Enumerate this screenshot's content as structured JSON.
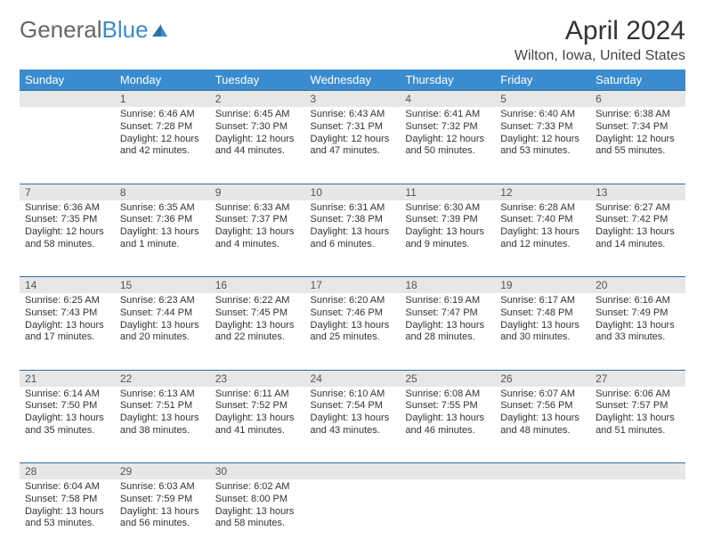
{
  "brand": {
    "part1": "General",
    "part2": "Blue"
  },
  "title": "April 2024",
  "location": "Wilton, Iowa, United States",
  "colors": {
    "header_bg": "#3b8ccf",
    "header_text": "#ffffff",
    "daynum_bg": "#e7e7e7",
    "rule": "#2f6fa3",
    "body_text": "#333333"
  },
  "dow": [
    "Sunday",
    "Monday",
    "Tuesday",
    "Wednesday",
    "Thursday",
    "Friday",
    "Saturday"
  ],
  "weeks": [
    [
      null,
      {
        "n": "1",
        "sr": "Sunrise: 6:46 AM",
        "ss": "Sunset: 7:28 PM",
        "dl": "Daylight: 12 hours and 42 minutes."
      },
      {
        "n": "2",
        "sr": "Sunrise: 6:45 AM",
        "ss": "Sunset: 7:30 PM",
        "dl": "Daylight: 12 hours and 44 minutes."
      },
      {
        "n": "3",
        "sr": "Sunrise: 6:43 AM",
        "ss": "Sunset: 7:31 PM",
        "dl": "Daylight: 12 hours and 47 minutes."
      },
      {
        "n": "4",
        "sr": "Sunrise: 6:41 AM",
        "ss": "Sunset: 7:32 PM",
        "dl": "Daylight: 12 hours and 50 minutes."
      },
      {
        "n": "5",
        "sr": "Sunrise: 6:40 AM",
        "ss": "Sunset: 7:33 PM",
        "dl": "Daylight: 12 hours and 53 minutes."
      },
      {
        "n": "6",
        "sr": "Sunrise: 6:38 AM",
        "ss": "Sunset: 7:34 PM",
        "dl": "Daylight: 12 hours and 55 minutes."
      }
    ],
    [
      {
        "n": "7",
        "sr": "Sunrise: 6:36 AM",
        "ss": "Sunset: 7:35 PM",
        "dl": "Daylight: 12 hours and 58 minutes."
      },
      {
        "n": "8",
        "sr": "Sunrise: 6:35 AM",
        "ss": "Sunset: 7:36 PM",
        "dl": "Daylight: 13 hours and 1 minute."
      },
      {
        "n": "9",
        "sr": "Sunrise: 6:33 AM",
        "ss": "Sunset: 7:37 PM",
        "dl": "Daylight: 13 hours and 4 minutes."
      },
      {
        "n": "10",
        "sr": "Sunrise: 6:31 AM",
        "ss": "Sunset: 7:38 PM",
        "dl": "Daylight: 13 hours and 6 minutes."
      },
      {
        "n": "11",
        "sr": "Sunrise: 6:30 AM",
        "ss": "Sunset: 7:39 PM",
        "dl": "Daylight: 13 hours and 9 minutes."
      },
      {
        "n": "12",
        "sr": "Sunrise: 6:28 AM",
        "ss": "Sunset: 7:40 PM",
        "dl": "Daylight: 13 hours and 12 minutes."
      },
      {
        "n": "13",
        "sr": "Sunrise: 6:27 AM",
        "ss": "Sunset: 7:42 PM",
        "dl": "Daylight: 13 hours and 14 minutes."
      }
    ],
    [
      {
        "n": "14",
        "sr": "Sunrise: 6:25 AM",
        "ss": "Sunset: 7:43 PM",
        "dl": "Daylight: 13 hours and 17 minutes."
      },
      {
        "n": "15",
        "sr": "Sunrise: 6:23 AM",
        "ss": "Sunset: 7:44 PM",
        "dl": "Daylight: 13 hours and 20 minutes."
      },
      {
        "n": "16",
        "sr": "Sunrise: 6:22 AM",
        "ss": "Sunset: 7:45 PM",
        "dl": "Daylight: 13 hours and 22 minutes."
      },
      {
        "n": "17",
        "sr": "Sunrise: 6:20 AM",
        "ss": "Sunset: 7:46 PM",
        "dl": "Daylight: 13 hours and 25 minutes."
      },
      {
        "n": "18",
        "sr": "Sunrise: 6:19 AM",
        "ss": "Sunset: 7:47 PM",
        "dl": "Daylight: 13 hours and 28 minutes."
      },
      {
        "n": "19",
        "sr": "Sunrise: 6:17 AM",
        "ss": "Sunset: 7:48 PM",
        "dl": "Daylight: 13 hours and 30 minutes."
      },
      {
        "n": "20",
        "sr": "Sunrise: 6:16 AM",
        "ss": "Sunset: 7:49 PM",
        "dl": "Daylight: 13 hours and 33 minutes."
      }
    ],
    [
      {
        "n": "21",
        "sr": "Sunrise: 6:14 AM",
        "ss": "Sunset: 7:50 PM",
        "dl": "Daylight: 13 hours and 35 minutes."
      },
      {
        "n": "22",
        "sr": "Sunrise: 6:13 AM",
        "ss": "Sunset: 7:51 PM",
        "dl": "Daylight: 13 hours and 38 minutes."
      },
      {
        "n": "23",
        "sr": "Sunrise: 6:11 AM",
        "ss": "Sunset: 7:52 PM",
        "dl": "Daylight: 13 hours and 41 minutes."
      },
      {
        "n": "24",
        "sr": "Sunrise: 6:10 AM",
        "ss": "Sunset: 7:54 PM",
        "dl": "Daylight: 13 hours and 43 minutes."
      },
      {
        "n": "25",
        "sr": "Sunrise: 6:08 AM",
        "ss": "Sunset: 7:55 PM",
        "dl": "Daylight: 13 hours and 46 minutes."
      },
      {
        "n": "26",
        "sr": "Sunrise: 6:07 AM",
        "ss": "Sunset: 7:56 PM",
        "dl": "Daylight: 13 hours and 48 minutes."
      },
      {
        "n": "27",
        "sr": "Sunrise: 6:06 AM",
        "ss": "Sunset: 7:57 PM",
        "dl": "Daylight: 13 hours and 51 minutes."
      }
    ],
    [
      {
        "n": "28",
        "sr": "Sunrise: 6:04 AM",
        "ss": "Sunset: 7:58 PM",
        "dl": "Daylight: 13 hours and 53 minutes."
      },
      {
        "n": "29",
        "sr": "Sunrise: 6:03 AM",
        "ss": "Sunset: 7:59 PM",
        "dl": "Daylight: 13 hours and 56 minutes."
      },
      {
        "n": "30",
        "sr": "Sunrise: 6:02 AM",
        "ss": "Sunset: 8:00 PM",
        "dl": "Daylight: 13 hours and 58 minutes."
      },
      null,
      null,
      null,
      null
    ]
  ]
}
